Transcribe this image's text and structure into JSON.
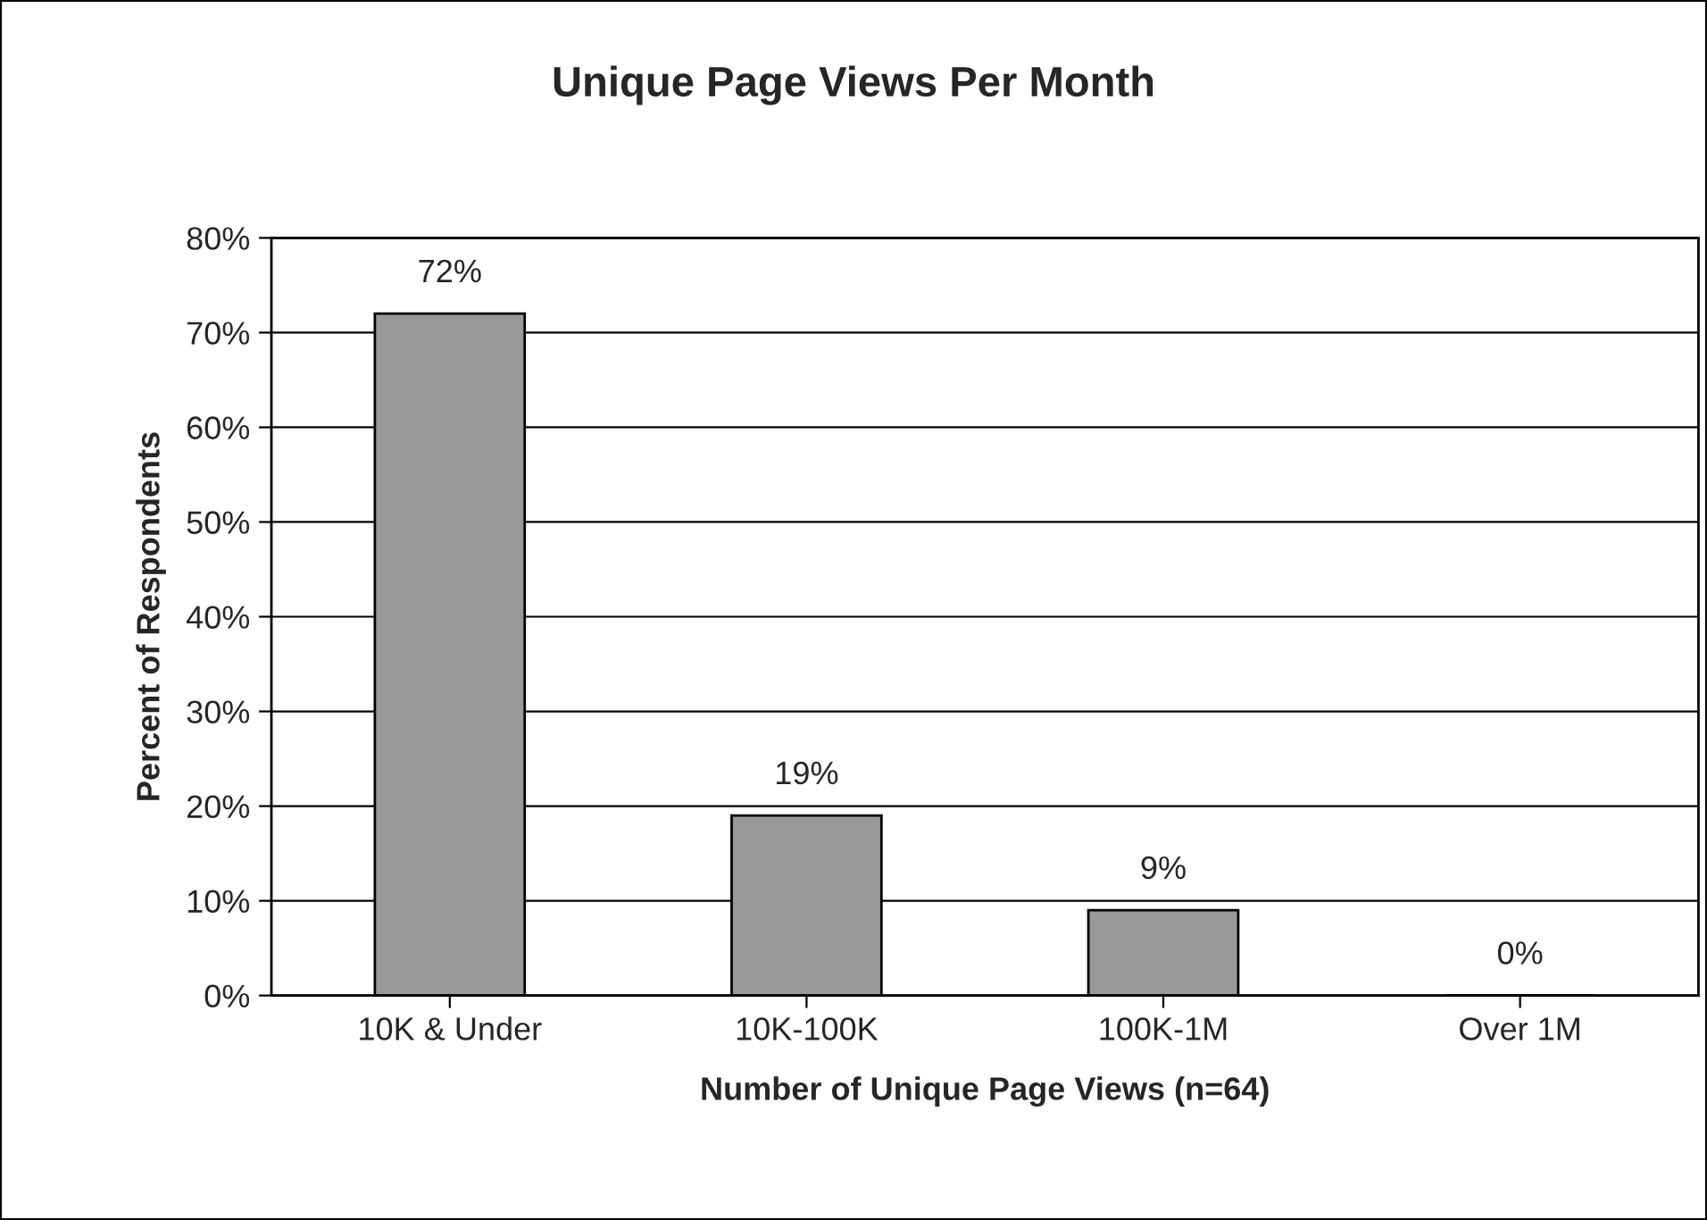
{
  "chart_data": {
    "type": "bar",
    "title": "Unique Page Views Per Month",
    "xlabel": "Number of Unique Page Views (n=64)",
    "ylabel": "Percent of Respondents",
    "categories": [
      "10K & Under",
      "10K-100K",
      "100K-1M",
      "Over 1M"
    ],
    "values": [
      72,
      19,
      9,
      0
    ],
    "value_labels": [
      "72%",
      "19%",
      "9%",
      "0%"
    ],
    "color": "#999999",
    "ylim": [
      0,
      80
    ],
    "yticks": [
      {
        "value": 0,
        "label": "0%"
      },
      {
        "value": 10,
        "label": "10%"
      },
      {
        "value": 20,
        "label": "20%"
      },
      {
        "value": 30,
        "label": "30%"
      },
      {
        "value": 40,
        "label": "40%"
      },
      {
        "value": 50,
        "label": "50%"
      },
      {
        "value": 60,
        "label": "60%"
      },
      {
        "value": 70,
        "label": "70%"
      },
      {
        "value": 80,
        "label": "80%"
      }
    ],
    "grid": "y"
  }
}
